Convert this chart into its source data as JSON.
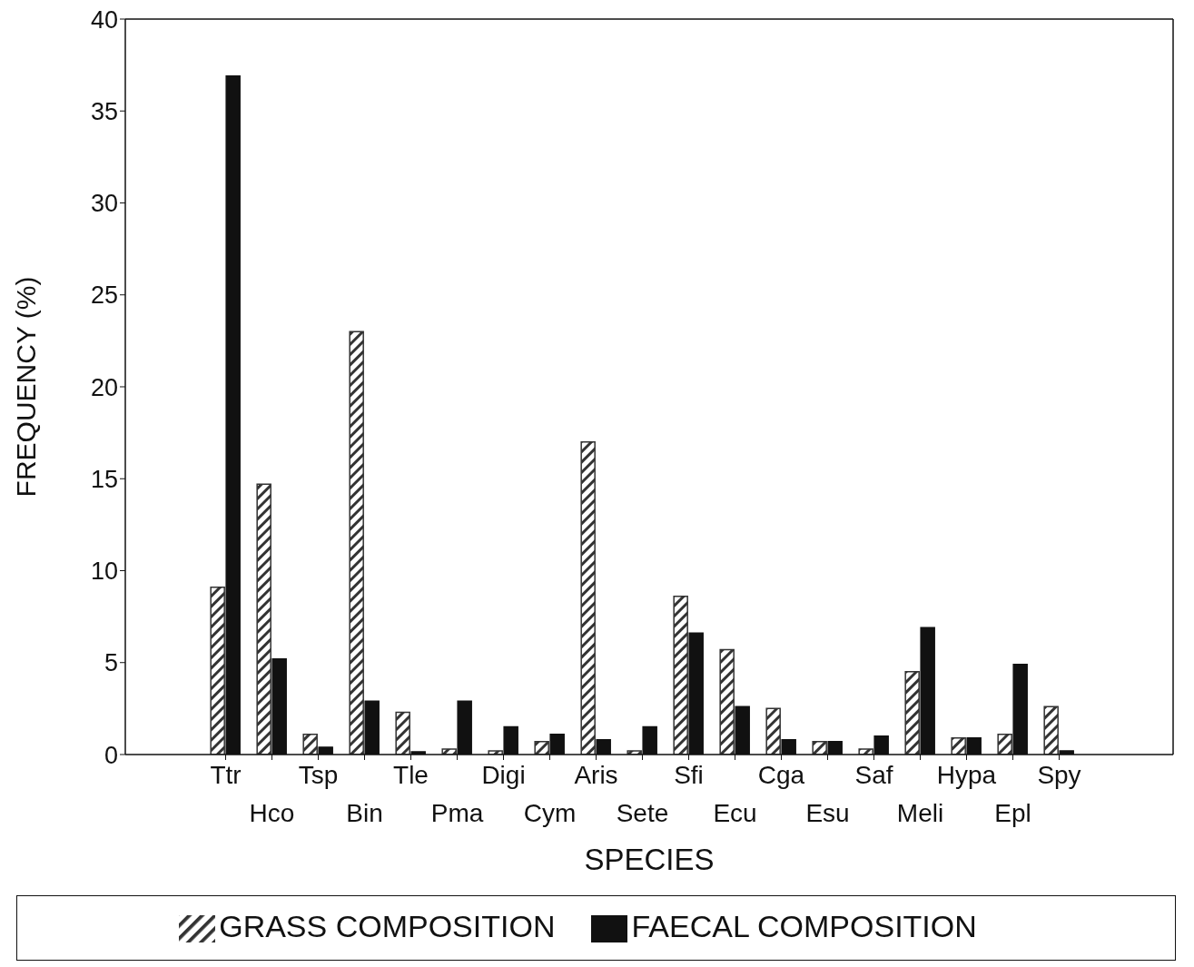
{
  "chart_data": {
    "type": "bar",
    "xlabel": "SPECIES",
    "ylabel": "FREQUENCY (%)",
    "categories": [
      "Ttr",
      "Hco",
      "Tsp",
      "Bin",
      "Tle",
      "Pma",
      "Digi",
      "Cym",
      "Aris",
      "Sete",
      "Sfi",
      "Ecu",
      "Cga",
      "Esu",
      "Saf",
      "Meli",
      "Hypa",
      "Epl",
      "Spy"
    ],
    "series": [
      {
        "name": "GRASS COMPOSITION",
        "color": "#333333",
        "values": [
          9.1,
          14.7,
          1.1,
          23,
          2.3,
          0.3,
          0.2,
          0.7,
          17,
          0.2,
          8.6,
          5.7,
          2.5,
          0.7,
          0.3,
          4.5,
          0.9,
          1.1,
          2.6
        ]
      },
      {
        "name": "FAECAL COMPOSITION",
        "color": "#111111",
        "values": [
          36.9,
          5.2,
          0.4,
          2.9,
          0.15,
          2.9,
          1.5,
          1.1,
          0.8,
          1.5,
          6.6,
          2.6,
          0.8,
          0.7,
          1.0,
          6.9,
          0.9,
          4.9,
          0.2
        ]
      }
    ],
    "ylim": [
      0,
      40
    ],
    "yticks": [
      0,
      5,
      10,
      15,
      20,
      25,
      30,
      35,
      40
    ],
    "legend": "bottom"
  }
}
